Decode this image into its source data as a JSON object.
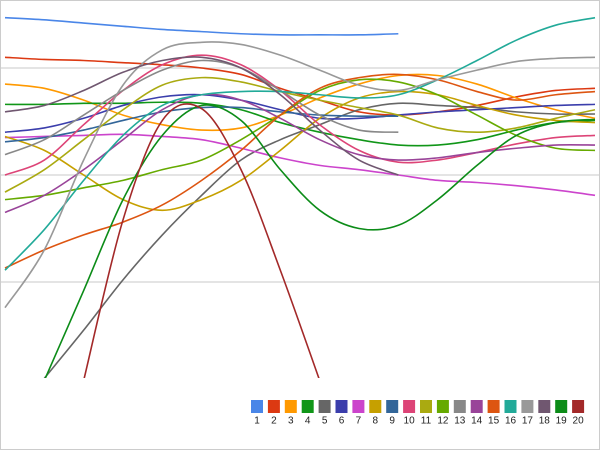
{
  "chart_data": {
    "type": "line",
    "x": [
      0,
      1,
      2,
      3,
      4,
      5,
      6,
      7,
      8,
      9,
      10,
      11,
      12,
      13,
      14,
      15
    ],
    "xlim": [
      0,
      15
    ],
    "ylim": [
      1,
      36
    ],
    "yticks": [
      10,
      20,
      30
    ],
    "grid": true,
    "legend": "bottom-right",
    "series": [
      {
        "name": "1",
        "color": "#4a86e8",
        "values": [
          34.7,
          34.5,
          34.2,
          33.9,
          33.6,
          33.4,
          33.2,
          33.1,
          33.1,
          33.1,
          33.2,
          null,
          null,
          null,
          null,
          null
        ]
      },
      {
        "name": "2",
        "color": "#dc3912",
        "values": [
          31.0,
          30.8,
          30.7,
          30.5,
          30.3,
          30.0,
          29.4,
          28.1,
          27.0,
          25.9,
          25.6,
          25.9,
          26.5,
          27.3,
          27.9,
          28.1
        ]
      },
      {
        "name": "3",
        "color": "#ff9900",
        "values": [
          28.5,
          28.1,
          27.0,
          25.6,
          24.7,
          24.2,
          24.4,
          25.6,
          27.2,
          28.5,
          29.3,
          29.3,
          28.5,
          27.2,
          26.1,
          25.3
        ]
      },
      {
        "name": "4",
        "color": "#109618",
        "values": [
          26.6,
          26.6,
          26.7,
          26.7,
          26.8,
          26.7,
          26.1,
          24.9,
          24.0,
          23.3,
          22.8,
          22.8,
          23.3,
          24.2,
          24.9,
          25.1
        ]
      },
      {
        "name": "5",
        "color": "#666666",
        "values": [
          null,
          1.0,
          5.5,
          10.2,
          14.4,
          18.1,
          21.4,
          23.3,
          24.7,
          26.1,
          26.7,
          26.5,
          26.3,
          25.9,
          25.7,
          25.7
        ]
      },
      {
        "name": "6",
        "color": "#3b3eac",
        "values": [
          24.0,
          24.4,
          25.3,
          26.5,
          27.3,
          27.5,
          27.0,
          26.1,
          25.3,
          25.3,
          25.6,
          25.9,
          26.1,
          26.3,
          26.5,
          26.6
        ]
      },
      {
        "name": "7",
        "color": "#cc44cc",
        "values": [
          23.5,
          23.6,
          23.7,
          23.8,
          23.6,
          23.3,
          22.5,
          21.6,
          20.9,
          20.5,
          20.0,
          19.5,
          19.3,
          19.0,
          18.6,
          18.1
        ]
      },
      {
        "name": "8",
        "color": "#c6a000",
        "values": [
          23.6,
          22.3,
          20.0,
          17.7,
          16.7,
          17.7,
          19.5,
          22.3,
          25.3,
          27.2,
          27.8,
          27.5,
          26.5,
          25.6,
          25.1,
          24.9
        ]
      },
      {
        "name": "9",
        "color": "#336699",
        "values": [
          23.1,
          23.5,
          24.2,
          25.1,
          25.9,
          26.3,
          26.3,
          25.9,
          25.6,
          25.5,
          25.5,
          null,
          null,
          null,
          null,
          null
        ]
      },
      {
        "name": "10",
        "color": "#dd4477",
        "values": [
          20.0,
          21.4,
          24.7,
          27.9,
          30.3,
          31.2,
          30.3,
          27.9,
          24.7,
          22.3,
          21.2,
          21.4,
          22.1,
          22.9,
          23.5,
          23.7
        ]
      },
      {
        "name": "11",
        "color": "#aaaa11",
        "values": [
          18.4,
          20.5,
          23.3,
          26.1,
          28.4,
          29.1,
          28.7,
          27.8,
          27.0,
          26.3,
          25.6,
          24.4,
          24.0,
          24.4,
          25.3,
          26.1
        ]
      },
      {
        "name": "12",
        "color": "#66aa00",
        "values": [
          17.7,
          18.1,
          18.8,
          19.5,
          20.5,
          21.4,
          23.3,
          25.6,
          27.9,
          28.9,
          28.7,
          27.5,
          25.6,
          23.7,
          22.5,
          22.3
        ]
      },
      {
        "name": "13",
        "color": "#888888",
        "values": [
          21.9,
          23.3,
          25.6,
          27.9,
          29.8,
          30.7,
          30.0,
          27.9,
          25.6,
          24.2,
          24.0,
          null,
          null,
          null,
          null,
          null
        ]
      },
      {
        "name": "14",
        "color": "#994499",
        "values": [
          16.5,
          18.1,
          20.5,
          23.3,
          26.1,
          27.5,
          27.0,
          25.3,
          23.3,
          21.9,
          21.4,
          21.6,
          22.1,
          22.5,
          22.8,
          22.8
        ]
      },
      {
        "name": "15",
        "color": "#dd5511",
        "values": [
          11.3,
          13.0,
          14.4,
          15.6,
          17.2,
          19.5,
          22.3,
          25.6,
          28.1,
          29.1,
          29.4,
          28.9,
          27.8,
          27.0,
          27.5,
          27.8
        ]
      },
      {
        "name": "16",
        "color": "#22aa99",
        "values": [
          11.1,
          14.9,
          19.5,
          23.7,
          26.5,
          27.5,
          27.8,
          27.8,
          27.5,
          27.2,
          27.5,
          28.9,
          30.7,
          32.6,
          34.0,
          34.7
        ]
      },
      {
        "name": "17",
        "color": "#999999",
        "values": [
          7.6,
          13.0,
          21.4,
          28.4,
          31.7,
          32.4,
          32.2,
          31.2,
          29.8,
          28.4,
          27.9,
          28.9,
          29.8,
          30.6,
          30.9,
          31.0
        ]
      },
      {
        "name": "18",
        "color": "#705770",
        "values": [
          25.9,
          26.5,
          27.9,
          29.6,
          30.7,
          31.0,
          30.0,
          27.5,
          24.2,
          21.4,
          20.0,
          null,
          null,
          null,
          null,
          null
        ]
      },
      {
        "name": "19",
        "color": "#0c8c18",
        "values": [
          null,
          0.8,
          9.2,
          17.7,
          23.7,
          26.5,
          25.1,
          20.5,
          16.7,
          15.0,
          15.3,
          17.7,
          20.9,
          23.7,
          24.9,
          25.2
        ]
      },
      {
        "name": "20",
        "color": "#a32929",
        "values": [
          null,
          null,
          0.8,
          15.8,
          25.1,
          26.2,
          20.5,
          11.1,
          0.8,
          null,
          null,
          null,
          null,
          null,
          null,
          null
        ]
      }
    ]
  }
}
